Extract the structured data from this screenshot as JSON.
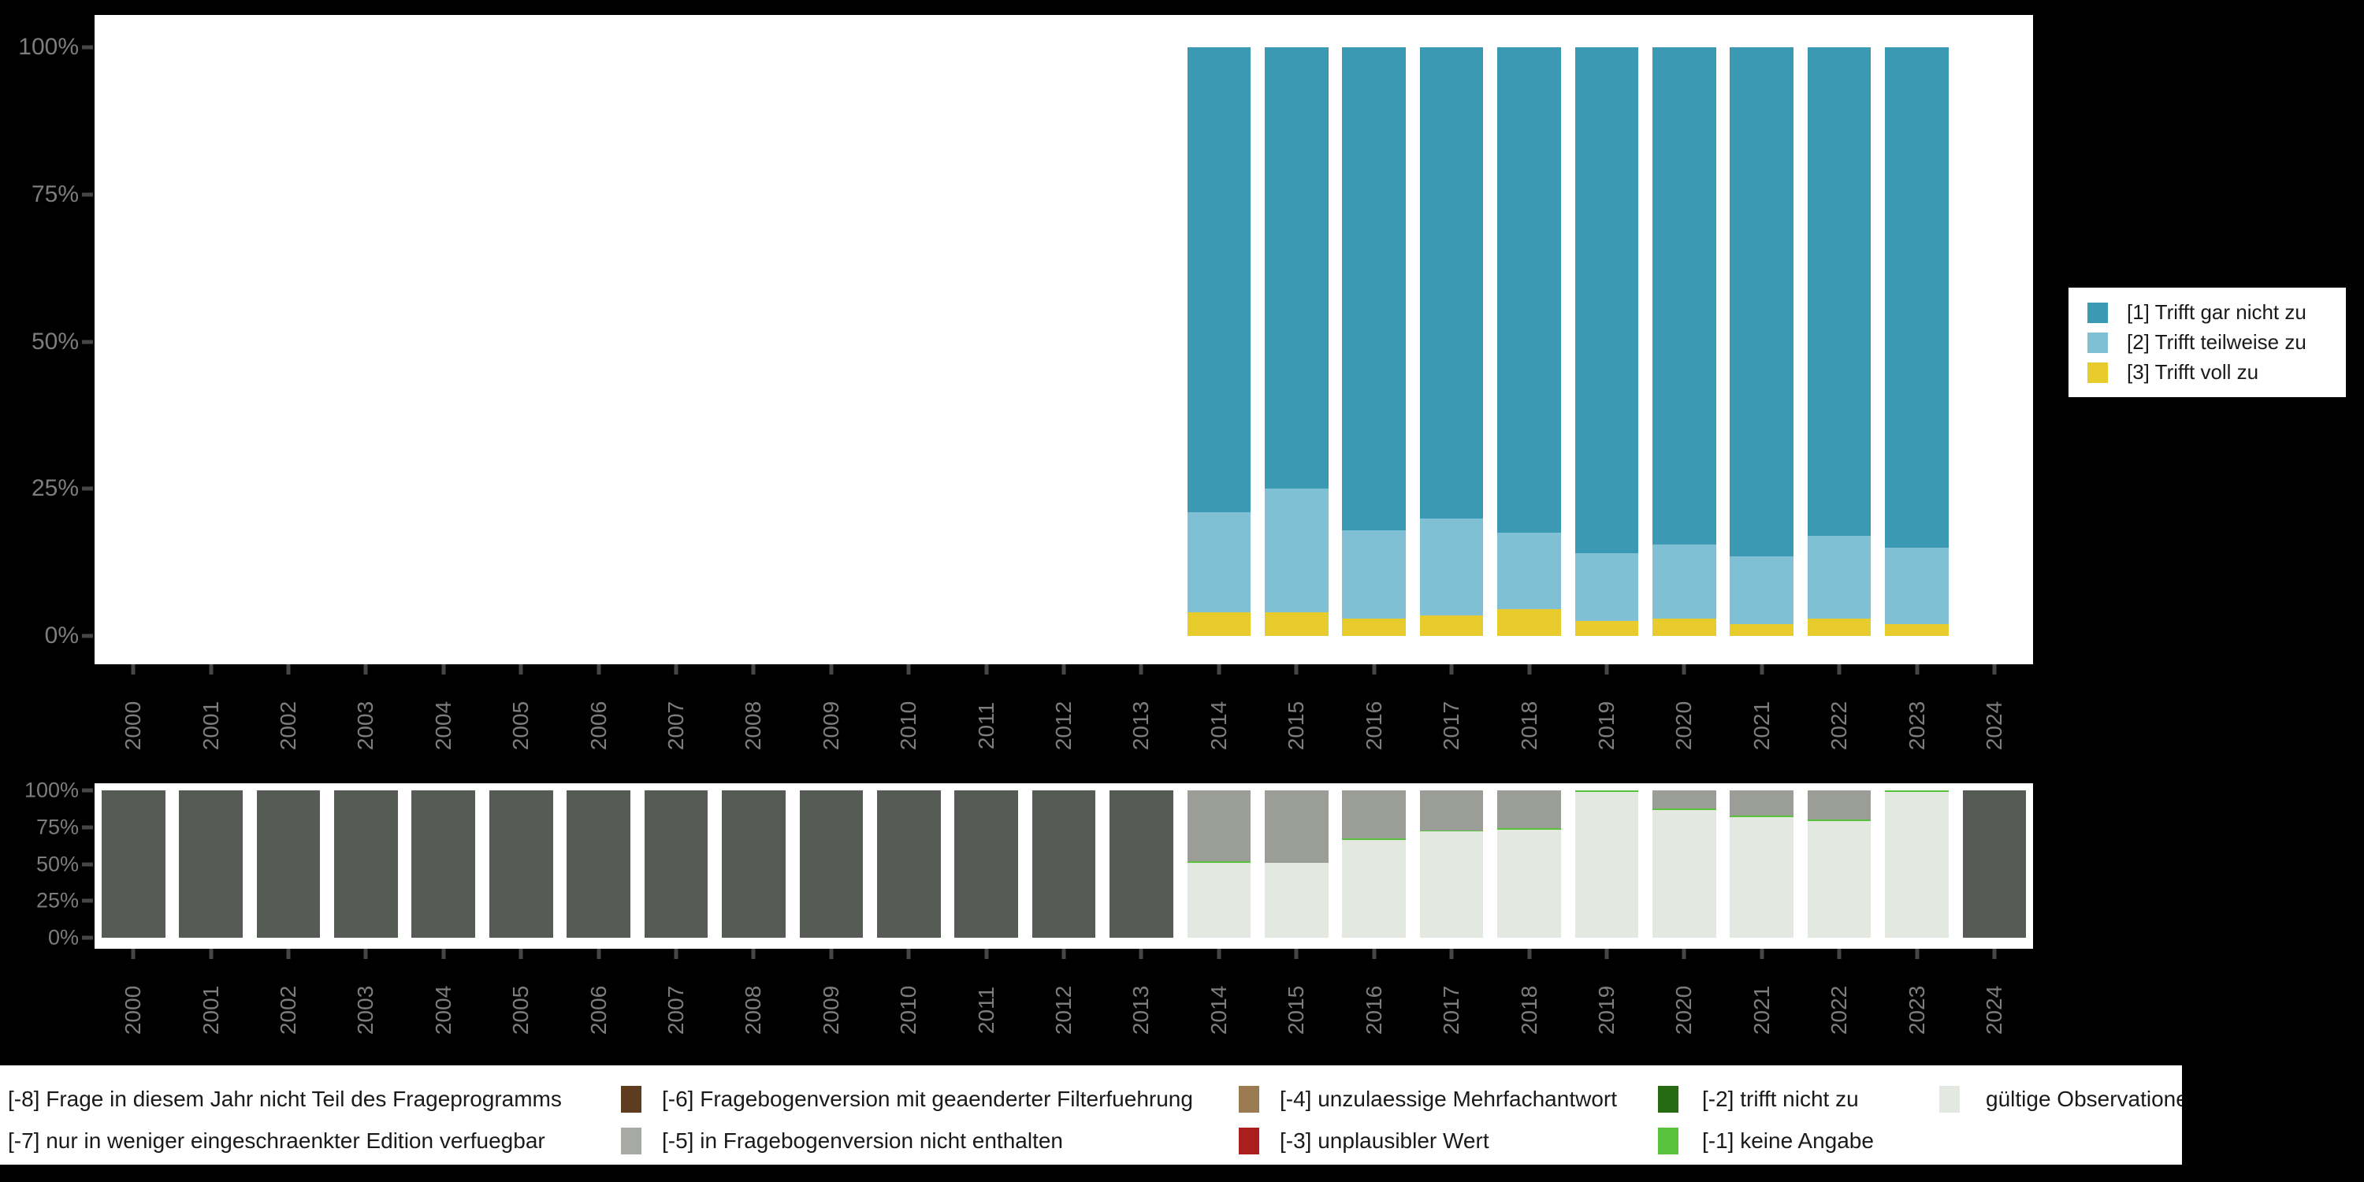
{
  "colors": {
    "background": "#000000",
    "panel": "#ffffff",
    "axis_text": "#7d7d7d",
    "tick": "#464646",
    "legend_text": "#1a1a1a",
    "trifft_gar_nicht_zu": "#3b99b3",
    "trifft_teilweise_zu": "#7fc0d4",
    "trifft_voll_zu": "#e8cc2d",
    "missing_dark": "#565b55",
    "missing_gray": "#9a9e96",
    "keine_angabe_green": "#58c13d",
    "valid_light": "#e3e8e1",
    "dark_green": "#266b12",
    "red": "#aa1e1e",
    "brown": "#5e3c20",
    "tan": "#9b7b52",
    "key_gray": "#a7aaa4"
  },
  "top_chart": {
    "y_axis": [
      "100%",
      "75%",
      "50%",
      "25%",
      "0%"
    ],
    "legend": [
      {
        "label": "[1] Trifft gar nicht zu",
        "color": "#3b99b3"
      },
      {
        "label": "[2] Trifft teilweise zu",
        "color": "#7fc0d4"
      },
      {
        "label": "[3] Trifft voll zu",
        "color": "#e8cc2d"
      }
    ]
  },
  "bottom_chart": {
    "y_axis": [
      "100%",
      "75%",
      "50%",
      "25%",
      "0%"
    ]
  },
  "missing_legend": {
    "rows": [
      [
        {
          "label": "[-8] Frage in diesem Jahr nicht Teil des Frageprogramms",
          "key_color": "#565b55",
          "key_clipped": true
        },
        {
          "label": "[-6] Fragebogenversion mit geaenderter Filterfuehrung",
          "key_color": "#5e3c20",
          "key_clipped": false
        },
        {
          "label": "[-4] unzulaessige Mehrfachantwort",
          "key_color": "#9b7b52",
          "key_clipped": false
        },
        {
          "label": "[-2] trifft nicht zu",
          "key_color": "#266b12",
          "key_clipped": false
        },
        {
          "label": "gültige Observationen",
          "key_color": "#e3e8e1",
          "key_clipped": false
        }
      ],
      [
        {
          "label": "[-7] nur in weniger eingeschraenkter Edition verfuegbar",
          "key_color": "#a7aaa4",
          "key_clipped": true
        },
        {
          "label": "[-5] in Fragebogenversion nicht enthalten",
          "key_color": "#a7aaa4",
          "key_clipped": false
        },
        {
          "label": "[-3] unplausibler Wert",
          "key_color": "#aa1e1e",
          "key_clipped": false
        },
        {
          "label": "[-1] keine Angabe",
          "key_color": "#58c13d",
          "key_clipped": false
        }
      ]
    ]
  },
  "chart_data": [
    {
      "type": "bar",
      "stacked": true,
      "title": "",
      "xlabel": "",
      "ylabel": "",
      "ylim": [
        0,
        100
      ],
      "y_ticks_percent": [
        0,
        25,
        50,
        75,
        100
      ],
      "grid": false,
      "legend_position": "right",
      "categories": [
        "2000",
        "2001",
        "2002",
        "2003",
        "2004",
        "2005",
        "2006",
        "2007",
        "2008",
        "2009",
        "2010",
        "2011",
        "2012",
        "2013",
        "2014",
        "2015",
        "2016",
        "2017",
        "2018",
        "2019",
        "2020",
        "2021",
        "2022",
        "2023",
        "2024"
      ],
      "series": [
        {
          "name": "[3] Trifft voll zu",
          "color": "#e8cc2d",
          "values": [
            0,
            0,
            0,
            0,
            0,
            0,
            0,
            0,
            0,
            0,
            0,
            0,
            0,
            0,
            4,
            4,
            3,
            3.5,
            4.5,
            2.5,
            3,
            2,
            3,
            2,
            0
          ]
        },
        {
          "name": "[2] Trifft teilweise zu",
          "color": "#7fc0d4",
          "values": [
            0,
            0,
            0,
            0,
            0,
            0,
            0,
            0,
            0,
            0,
            0,
            0,
            0,
            0,
            17,
            21,
            15,
            16.5,
            13,
            11.5,
            12.5,
            11.5,
            14,
            13,
            0
          ]
        },
        {
          "name": "[1] Trifft gar nicht zu",
          "color": "#3b99b3",
          "values": [
            0,
            0,
            0,
            0,
            0,
            0,
            0,
            0,
            0,
            0,
            0,
            0,
            0,
            0,
            79,
            75,
            82,
            80,
            82.5,
            86,
            84.5,
            86.5,
            83,
            85,
            0
          ]
        }
      ]
    },
    {
      "type": "bar",
      "stacked": true,
      "title": "",
      "xlabel": "",
      "ylabel": "",
      "ylim": [
        0,
        100
      ],
      "y_ticks_percent": [
        0,
        25,
        50,
        75,
        100
      ],
      "grid": false,
      "legend_position": "bottom",
      "categories": [
        "2000",
        "2001",
        "2002",
        "2003",
        "2004",
        "2005",
        "2006",
        "2007",
        "2008",
        "2009",
        "2010",
        "2011",
        "2012",
        "2013",
        "2014",
        "2015",
        "2016",
        "2017",
        "2018",
        "2019",
        "2020",
        "2021",
        "2022",
        "2023",
        "2024"
      ],
      "series": [
        {
          "name": "gültige Observationen",
          "color": "#e3e8e1",
          "values": [
            0,
            0,
            0,
            0,
            0,
            0,
            0,
            0,
            0,
            0,
            0,
            0,
            0,
            0,
            51,
            51,
            66.5,
            72,
            73.5,
            99,
            86.5,
            82,
            79,
            99,
            0
          ]
        },
        {
          "name": "[-1] keine Angabe",
          "color": "#58c13d",
          "values": [
            0,
            0,
            0,
            0,
            0,
            0,
            0,
            0,
            0,
            0,
            0,
            0,
            0,
            0,
            1,
            0,
            1,
            1,
            1,
            1,
            1,
            1,
            1,
            1,
            0
          ]
        },
        {
          "name": "[-5] in Fragebogenversion nicht enthalten",
          "color": "#9a9e96",
          "values": [
            0,
            0,
            0,
            0,
            0,
            0,
            0,
            0,
            0,
            0,
            0,
            0,
            0,
            0,
            48,
            49,
            32.5,
            27,
            25.5,
            0,
            12.5,
            17,
            20,
            0,
            0
          ]
        },
        {
          "name": "[-8] Frage in diesem Jahr nicht Teil des Frageprogramms",
          "color": "#565b55",
          "values": [
            100,
            100,
            100,
            100,
            100,
            100,
            100,
            100,
            100,
            100,
            100,
            100,
            100,
            100,
            0,
            0,
            0,
            0,
            0,
            0,
            0,
            0,
            0,
            0,
            100
          ]
        }
      ]
    }
  ]
}
